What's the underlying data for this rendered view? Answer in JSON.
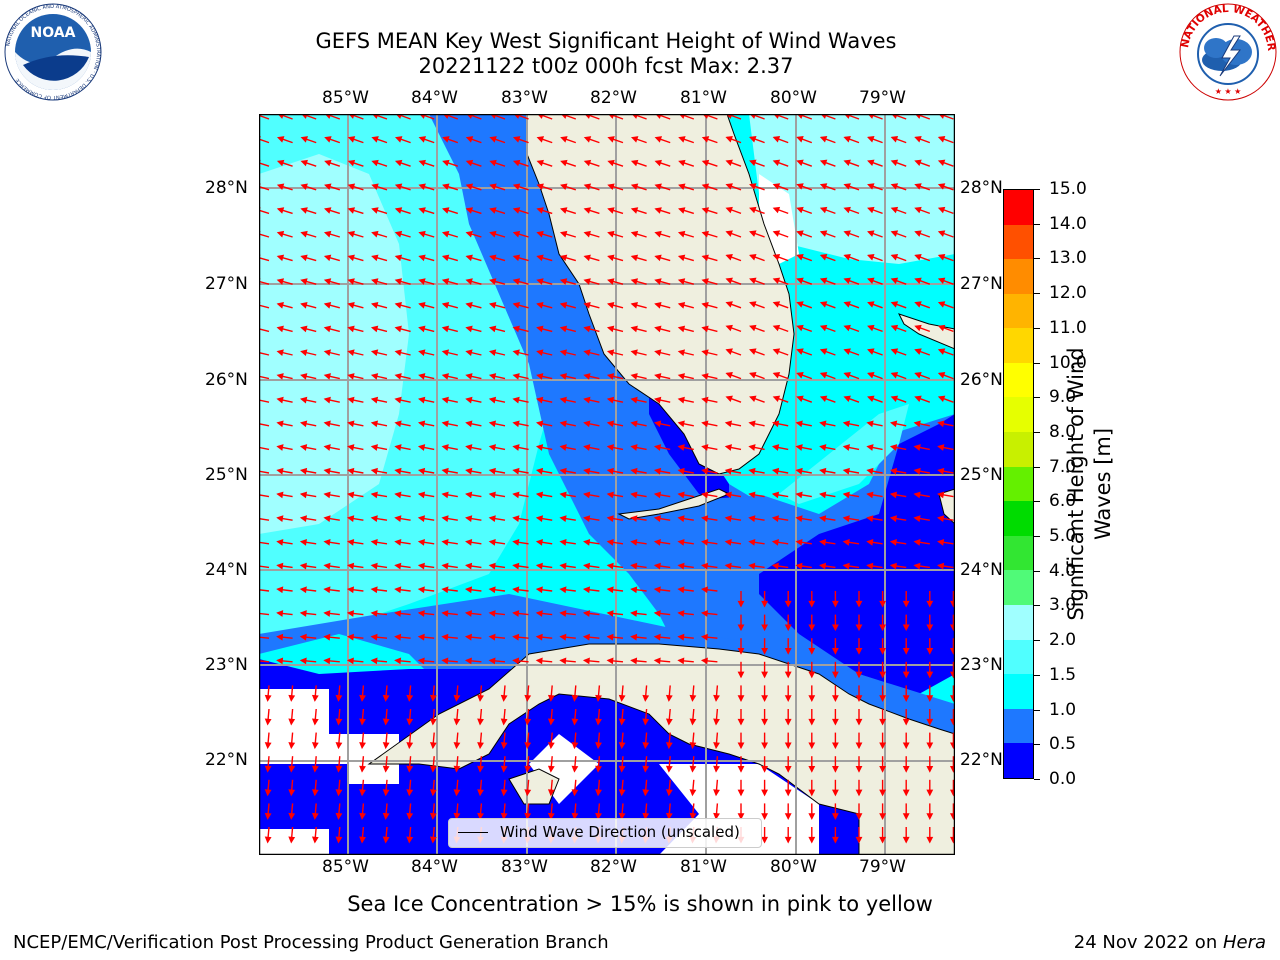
{
  "header": {
    "title_line1": "GEFS MEAN Key West Significant Height of Wind Waves",
    "title_line2": "20221122 t00z 000h fcst   Max: 2.37"
  },
  "logos": {
    "noaa_text": "NOAA",
    "noaa_ring_text": "NATIONAL OCEANIC AND ATMOSPHERIC ADMINISTRATION · U.S. DEPARTMENT OF COMMERCE",
    "nws_ring_text": "NATIONAL WEATHER SERVICE"
  },
  "map": {
    "lon_labels": [
      "85°W",
      "84°W",
      "83°W",
      "82°W",
      "81°W",
      "80°W",
      "79°W"
    ],
    "lat_labels": [
      "28°N",
      "27°N",
      "26°N",
      "25°N",
      "24°N",
      "23°N",
      "22°N"
    ],
    "legend_label": "Wind Wave Direction (unscaled)"
  },
  "colorbar": {
    "label_line1": "Significant Height of Wind",
    "label_line2": "Waves [m]",
    "ticks": [
      "0.0",
      "0.5",
      "1.0",
      "1.5",
      "2.0",
      "3.0",
      "4.0",
      "5.0",
      "6.0",
      "7.0",
      "8.0",
      "9.0",
      "10.0",
      "11.0",
      "12.0",
      "13.0",
      "14.0",
      "15.0"
    ],
    "colors": [
      "#0000ff",
      "#1e78ff",
      "#00ffff",
      "#50ffff",
      "#a0ffff",
      "#50fa78",
      "#32e632",
      "#00dc00",
      "#64f000",
      "#c8f000",
      "#e6ff00",
      "#ffff00",
      "#ffd700",
      "#ffb400",
      "#ff8c00",
      "#ff5000",
      "#ff0000"
    ]
  },
  "caption": "Sea Ice Concentration > 15% is shown in pink to yellow",
  "footer": {
    "left": "NCEP/EMC/Verification Post Processing Product Generation Branch",
    "right_prefix": "24 Nov 2022 on ",
    "right_host": "Hera"
  }
}
